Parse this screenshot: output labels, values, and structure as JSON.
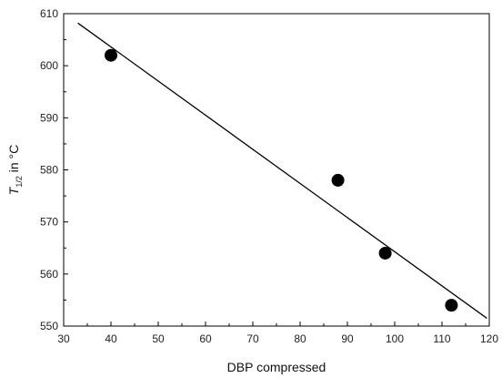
{
  "chart_data": {
    "type": "scatter",
    "title": "",
    "xlabel": "DBP compressed",
    "ylabel": {
      "symbol": "T",
      "subscript": "1/2",
      "suffix": " in °C"
    },
    "xlim": [
      30,
      120
    ],
    "ylim": [
      550,
      610
    ],
    "xticks": [
      30,
      40,
      50,
      60,
      70,
      80,
      90,
      100,
      110,
      120
    ],
    "yticks": [
      550,
      560,
      570,
      580,
      590,
      600,
      610
    ],
    "grid": false,
    "legend": "none",
    "series": [
      {
        "kind": "points",
        "x": [
          40,
          88,
          98,
          112
        ],
        "y": [
          602,
          578,
          564,
          554
        ],
        "color": "#000000",
        "marker": "filled-circle"
      },
      {
        "kind": "fit-line",
        "x": [
          33,
          119.5
        ],
        "y": [
          608.2,
          551.5
        ],
        "color": "#000000"
      }
    ]
  }
}
